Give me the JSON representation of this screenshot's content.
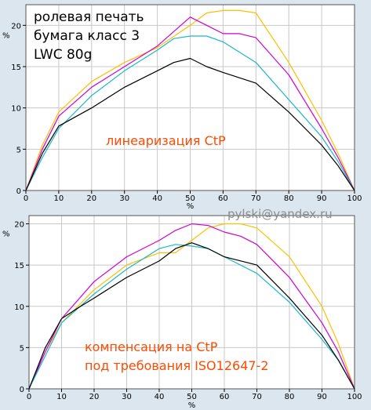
{
  "header": {
    "lines": [
      "ролевая печать",
      "бумага класс 3",
      "LWC 80g"
    ]
  },
  "watermark": "pylski@yandex.ru",
  "colors": {
    "background": "#dce6ee",
    "plot_area": "#ffffff",
    "grid": "#c8c8c8",
    "annotation": "#ff4a00",
    "black": "#000000",
    "cyan": "#1ab8c8",
    "magenta": "#d000d0",
    "yellow": "#ffbf00"
  },
  "chart_data": [
    {
      "type": "line",
      "annotation": "линеаризация CtP",
      "xlabel": "%",
      "ylabel": "%",
      "xlim": [
        0,
        100
      ],
      "ylim": [
        0,
        22.5
      ],
      "xticks": [
        0,
        10,
        20,
        30,
        40,
        50,
        60,
        70,
        80,
        90,
        100
      ],
      "yticks": [
        0,
        5,
        10,
        15,
        20
      ],
      "grid": true,
      "series": [
        {
          "color": "#ffbf00",
          "x": [
            0,
            5,
            10,
            20,
            30,
            40,
            50,
            55,
            60,
            65,
            70,
            80,
            90,
            95,
            100
          ],
          "y": [
            0,
            5.5,
            9.5,
            13.2,
            15.5,
            17.3,
            20.0,
            21.5,
            21.8,
            21.8,
            21.5,
            15.5,
            8.5,
            4.5,
            0
          ]
        },
        {
          "color": "#d000d0",
          "x": [
            0,
            5,
            10,
            20,
            30,
            40,
            50,
            55,
            60,
            65,
            70,
            80,
            90,
            95,
            100
          ],
          "y": [
            0,
            5.0,
            9.0,
            12.5,
            15.0,
            17.5,
            21.0,
            20.0,
            19.0,
            19.0,
            18.5,
            14.0,
            7.5,
            4.0,
            0
          ]
        },
        {
          "color": "#1ab8c8",
          "x": [
            0,
            5,
            10,
            20,
            30,
            40,
            45,
            50,
            55,
            60,
            70,
            80,
            90,
            95,
            100
          ],
          "y": [
            0,
            4.0,
            7.5,
            11.5,
            14.5,
            17.0,
            18.4,
            18.7,
            18.7,
            18.0,
            15.5,
            11.0,
            6.5,
            3.5,
            0
          ]
        },
        {
          "color": "#000000",
          "x": [
            0,
            5,
            10,
            20,
            30,
            40,
            45,
            50,
            55,
            60,
            70,
            80,
            90,
            95,
            100
          ],
          "y": [
            0,
            4.5,
            7.8,
            10.0,
            12.5,
            14.5,
            15.5,
            16.0,
            15.0,
            14.3,
            13.0,
            9.5,
            5.5,
            3.0,
            0
          ]
        }
      ]
    },
    {
      "type": "line",
      "annotation_lines": [
        "компенсация на CtP",
        "под требования ISO12647-2"
      ],
      "xlabel": "%",
      "ylabel": "%",
      "xlim": [
        0,
        100
      ],
      "ylim": [
        0,
        21
      ],
      "xticks": [
        0,
        10,
        20,
        30,
        40,
        50,
        60,
        70,
        80,
        90,
        100
      ],
      "yticks": [
        0,
        5,
        10,
        15,
        20
      ],
      "grid": true,
      "series": [
        {
          "color": "#ffbf00",
          "x": [
            0,
            5,
            10,
            20,
            30,
            40,
            45,
            50,
            55,
            60,
            65,
            70,
            80,
            90,
            95,
            100
          ],
          "y": [
            0,
            4.5,
            8.0,
            12.0,
            15.0,
            16.5,
            16.5,
            18.0,
            19.5,
            20.0,
            20.0,
            19.5,
            16.0,
            10.0,
            5.5,
            0
          ]
        },
        {
          "color": "#d000d0",
          "x": [
            0,
            5,
            10,
            20,
            30,
            40,
            45,
            50,
            55,
            60,
            65,
            70,
            80,
            90,
            95,
            100
          ],
          "y": [
            0,
            4.5,
            8.5,
            13.0,
            16.0,
            18.0,
            19.2,
            20.0,
            19.8,
            19.0,
            18.5,
            17.5,
            13.5,
            8.0,
            4.5,
            0
          ]
        },
        {
          "color": "#1ab8c8",
          "x": [
            0,
            5,
            10,
            20,
            30,
            40,
            45,
            50,
            55,
            60,
            70,
            80,
            90,
            95,
            100
          ],
          "y": [
            0,
            4.0,
            8.0,
            11.5,
            14.5,
            17.0,
            17.5,
            17.3,
            17.0,
            16.0,
            14.0,
            10.5,
            6.0,
            3.5,
            0
          ]
        },
        {
          "color": "#000000",
          "x": [
            0,
            5,
            10,
            15,
            20,
            30,
            40,
            45,
            50,
            55,
            60,
            70,
            80,
            90,
            95,
            100
          ],
          "y": [
            0,
            5.0,
            8.5,
            9.8,
            11.0,
            13.5,
            15.5,
            17.0,
            17.7,
            17.0,
            16.0,
            15.0,
            11.0,
            6.5,
            3.5,
            0
          ]
        }
      ]
    }
  ]
}
